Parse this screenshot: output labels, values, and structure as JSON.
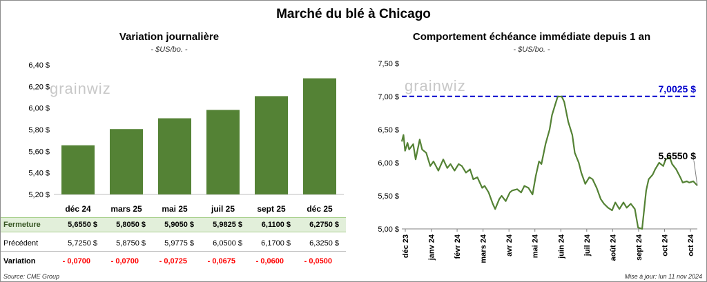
{
  "title": "Marché du blé à Chicago",
  "left_panel": {
    "title": "Variation journalière",
    "unit": "- $US/bo. -",
    "watermark": "grainwiz"
  },
  "right_panel": {
    "title": "Comportement  échéance immédiate depuis 1 an",
    "unit": "- $US/bo. -",
    "watermark": "grainwiz",
    "reference_label": "7,0025 $",
    "last_label": "5,6550 $"
  },
  "table": {
    "rows": [
      {
        "label": "Fermeture",
        "cells": [
          "5,6550  $",
          "5,8050  $",
          "5,9050  $",
          "5,9825  $",
          "6,1100  $",
          "6,2750  $"
        ]
      },
      {
        "label": "Précédent",
        "cells": [
          "5,7250  $",
          "5,8750  $",
          "5,9775  $",
          "6,0500  $",
          "6,1700  $",
          "6,3250  $"
        ]
      },
      {
        "label": "Variation",
        "cells": [
          "- 0,0700",
          "- 0,0700",
          "- 0,0725",
          "- 0,0675",
          "- 0,0600",
          "- 0,0500"
        ]
      }
    ]
  },
  "footer": {
    "source": "Source: CME Group",
    "updated": "Mise à jour: lun 11 nov 2024"
  },
  "colors": {
    "bar": "#548235",
    "line": "#548235",
    "reference": "#0000cc",
    "negative": "#ff0000",
    "close_row_bg": "#e2efda"
  },
  "chart_data": [
    {
      "type": "bar",
      "title": "Variation journalière",
      "categories": [
        "déc 24",
        "mars 25",
        "mai 25",
        "juil 25",
        "sept 25",
        "déc 25"
      ],
      "values": [
        5.655,
        5.805,
        5.905,
        5.9825,
        6.11,
        6.275
      ],
      "ylim": [
        5.2,
        6.4
      ],
      "yticks": [
        "5,20 $",
        "5,40 $",
        "5,60 $",
        "5,80 $",
        "6,00 $",
        "6,20 $",
        "6,40 $"
      ],
      "grid": false
    },
    {
      "type": "line",
      "title": "Comportement  échéance immédiate depuis 1 an",
      "ylim": [
        5.0,
        7.5
      ],
      "yticks": [
        "5,00 $",
        "5,50 $",
        "6,00 $",
        "6,50 $",
        "7,00 $",
        "7,50 $"
      ],
      "xticks": [
        "déc 23",
        "janv 24",
        "févr 24",
        "mars 24",
        "avr 24",
        "mai 24",
        "juin 24",
        "juil 24",
        "août 24",
        "sept 24",
        "oct 24",
        "oct 24"
      ],
      "xlim": [
        "2023-11-13",
        "2024-11-11"
      ],
      "reference_value": 7.0025,
      "x": [
        "2023-11-13",
        "2023-11-15",
        "2023-11-17",
        "2023-11-20",
        "2023-11-22",
        "2023-11-27",
        "2023-11-30",
        "2023-12-05",
        "2023-12-08",
        "2023-12-13",
        "2023-12-18",
        "2023-12-22",
        "2023-12-28",
        "2024-01-03",
        "2024-01-08",
        "2024-01-12",
        "2024-01-17",
        "2024-01-22",
        "2024-01-26",
        "2024-01-31",
        "2024-02-05",
        "2024-02-09",
        "2024-02-14",
        "2024-02-20",
        "2024-02-23",
        "2024-02-28",
        "2024-03-04",
        "2024-03-07",
        "2024-03-12",
        "2024-03-15",
        "2024-03-20",
        "2024-03-25",
        "2024-03-28",
        "2024-04-03",
        "2024-04-08",
        "2024-04-12",
        "2024-04-17",
        "2024-04-22",
        "2024-04-26",
        "2024-04-30",
        "2024-05-03",
        "2024-05-08",
        "2024-05-13",
        "2024-05-16",
        "2024-05-20",
        "2024-05-23",
        "2024-05-28",
        "2024-05-31",
        "2024-06-05",
        "2024-06-10",
        "2024-06-13",
        "2024-06-18",
        "2024-06-21",
        "2024-06-26",
        "2024-07-01",
        "2024-07-05",
        "2024-07-10",
        "2024-07-15",
        "2024-07-19",
        "2024-07-24",
        "2024-07-29",
        "2024-08-02",
        "2024-08-07",
        "2024-08-12",
        "2024-08-16",
        "2024-08-21",
        "2024-08-26",
        "2024-08-30",
        "2024-09-04",
        "2024-09-09",
        "2024-09-12",
        "2024-09-17",
        "2024-09-20",
        "2024-09-25",
        "2024-09-30",
        "2024-10-03",
        "2024-10-08",
        "2024-10-11",
        "2024-10-16",
        "2024-10-21",
        "2024-10-24",
        "2024-10-29",
        "2024-11-01",
        "2024-11-06",
        "2024-11-11"
      ],
      "y": [
        6.32,
        6.42,
        6.18,
        6.3,
        6.2,
        6.28,
        6.05,
        6.35,
        6.2,
        6.15,
        5.95,
        6.02,
        5.88,
        6.05,
        5.92,
        5.98,
        5.88,
        5.98,
        5.95,
        5.85,
        5.9,
        5.75,
        5.78,
        5.62,
        5.65,
        5.55,
        5.38,
        5.3,
        5.45,
        5.5,
        5.42,
        5.55,
        5.58,
        5.6,
        5.55,
        5.65,
        5.62,
        5.52,
        5.8,
        6.02,
        5.98,
        6.28,
        6.5,
        6.72,
        6.88,
        7.0,
        7.0,
        6.92,
        6.62,
        6.42,
        6.15,
        6.0,
        5.85,
        5.68,
        5.78,
        5.75,
        5.62,
        5.45,
        5.38,
        5.32,
        5.28,
        5.4,
        5.3,
        5.4,
        5.32,
        5.38,
        5.3,
        5.02,
        5.0,
        5.58,
        5.75,
        5.82,
        5.9,
        6.0,
        5.95,
        6.05,
        6.08,
        5.98,
        5.9,
        5.78,
        5.7,
        5.72,
        5.7,
        5.72,
        5.655
      ]
    }
  ]
}
